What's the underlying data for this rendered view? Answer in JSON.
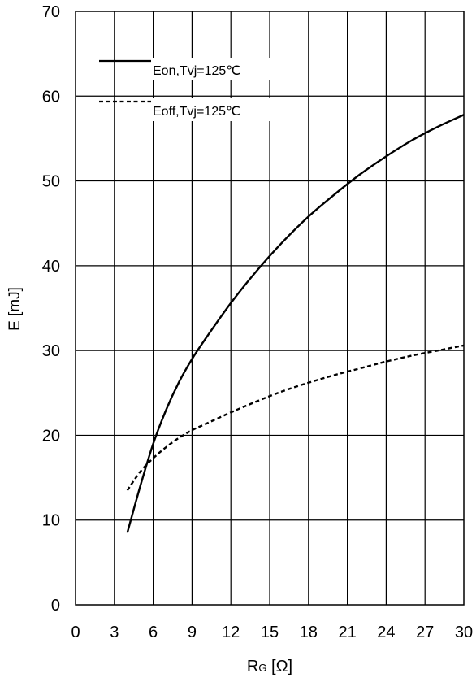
{
  "chart_data": {
    "type": "line",
    "title": "",
    "xlabel_main": "R",
    "xlabel_sub": "G",
    "xlabel_unit": " [Ω]",
    "ylabel": "E [mJ]",
    "xlim": [
      0,
      30
    ],
    "ylim": [
      0,
      70
    ],
    "xticks": [
      0,
      3,
      6,
      9,
      12,
      15,
      18,
      21,
      24,
      27,
      30
    ],
    "yticks": [
      0,
      10,
      20,
      30,
      40,
      50,
      60,
      70
    ],
    "grid": true,
    "legend_position": "top-left",
    "series": [
      {
        "name": "Eon,Tvj=125℃",
        "style": "solid",
        "color": "#000000",
        "x": [
          4,
          5,
          6,
          7,
          8,
          9,
          10,
          12,
          14,
          16,
          18,
          20,
          22,
          24,
          26,
          28,
          30
        ],
        "y": [
          8.5,
          14.0,
          19.0,
          23.0,
          26.3,
          29.0,
          31.3,
          35.6,
          39.4,
          42.8,
          45.8,
          48.4,
          50.8,
          52.9,
          54.8,
          56.4,
          57.8
        ]
      },
      {
        "name": "Eoff,Tvj=125℃",
        "style": "dashed",
        "color": "#000000",
        "x": [
          4,
          5,
          6,
          7,
          8,
          9,
          10,
          12,
          14,
          16,
          18,
          20,
          22,
          24,
          26,
          28,
          30
        ],
        "y": [
          13.5,
          15.7,
          17.3,
          18.6,
          19.7,
          20.6,
          21.3,
          22.7,
          24.0,
          25.2,
          26.2,
          27.1,
          27.9,
          28.7,
          29.4,
          30.0,
          30.6
        ]
      }
    ]
  }
}
